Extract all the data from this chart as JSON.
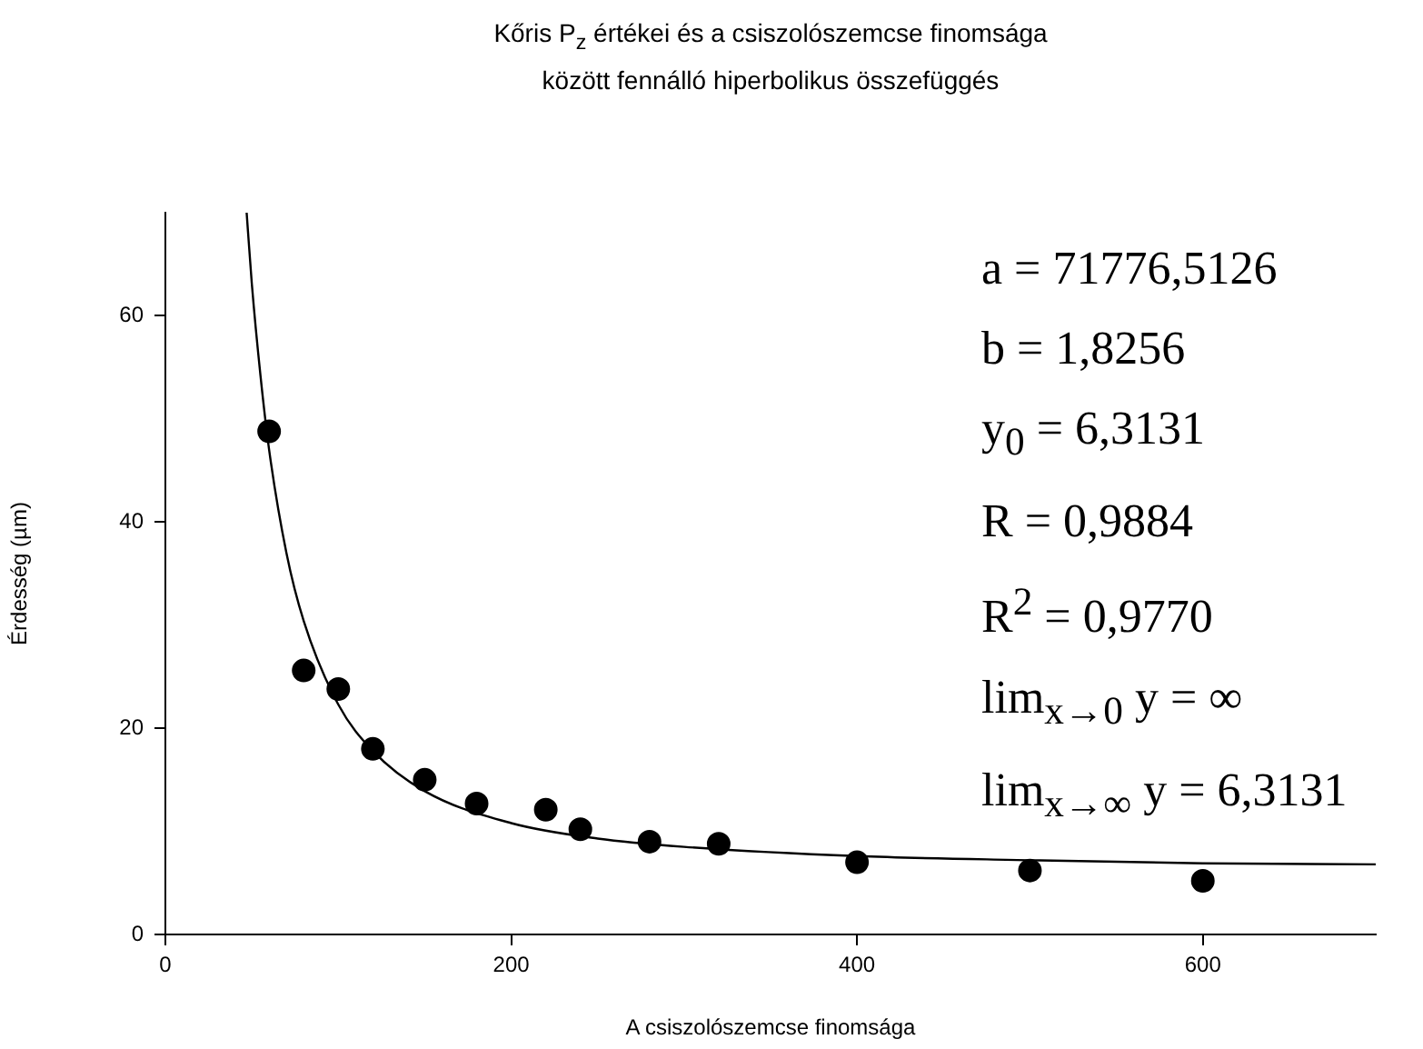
{
  "chart_data": {
    "type": "scatter",
    "title": "Kőris P$_{z}$ értékei és a csiszolószemcse finomsága\nközött fennálló hiperbolikus összefüggés",
    "xlabel": "A csiszolószemcse finomsága",
    "ylabel": "Érdesség (µm)",
    "xlim": [
      0,
      700
    ],
    "ylim": [
      0,
      70
    ],
    "xticks": [
      0,
      200,
      400,
      600
    ],
    "yticks": [
      0,
      20,
      40,
      60
    ],
    "marker": "circle",
    "series": [
      {
        "type": "scatter",
        "color": "#000000",
        "x": [
          60,
          80,
          100,
          120,
          150,
          180,
          220,
          240,
          280,
          320,
          400,
          500,
          600
        ],
        "values": [
          48.8,
          25.6,
          23.8,
          18.0,
          15.0,
          12.7,
          12.1,
          10.2,
          9.0,
          8.8,
          7.0,
          6.2,
          5.2
        ]
      },
      {
        "type": "line",
        "color": "#000000",
        "marker": "none",
        "x": [
          47,
          50,
          55,
          60,
          70,
          80,
          100,
          120,
          150,
          200,
          250,
          300,
          400,
          500,
          600,
          700
        ],
        "values": [
          70,
          63.1,
          54.2,
          47.0,
          37.0,
          30.4,
          22.3,
          17.8,
          13.9,
          10.8,
          9.3,
          8.5,
          7.6,
          7.2,
          6.9,
          6.8
        ]
      }
    ],
    "annotations": [
      "a = 71776,5126",
      "b = 1,8256",
      "y$_{0}$ = 6,3131",
      "R = 0,9884",
      "R$^{2}$ = 0,9770",
      "lim$_{x→0}$ y = ∞",
      "lim$_{x→∞}$ y = 6,3131"
    ]
  }
}
